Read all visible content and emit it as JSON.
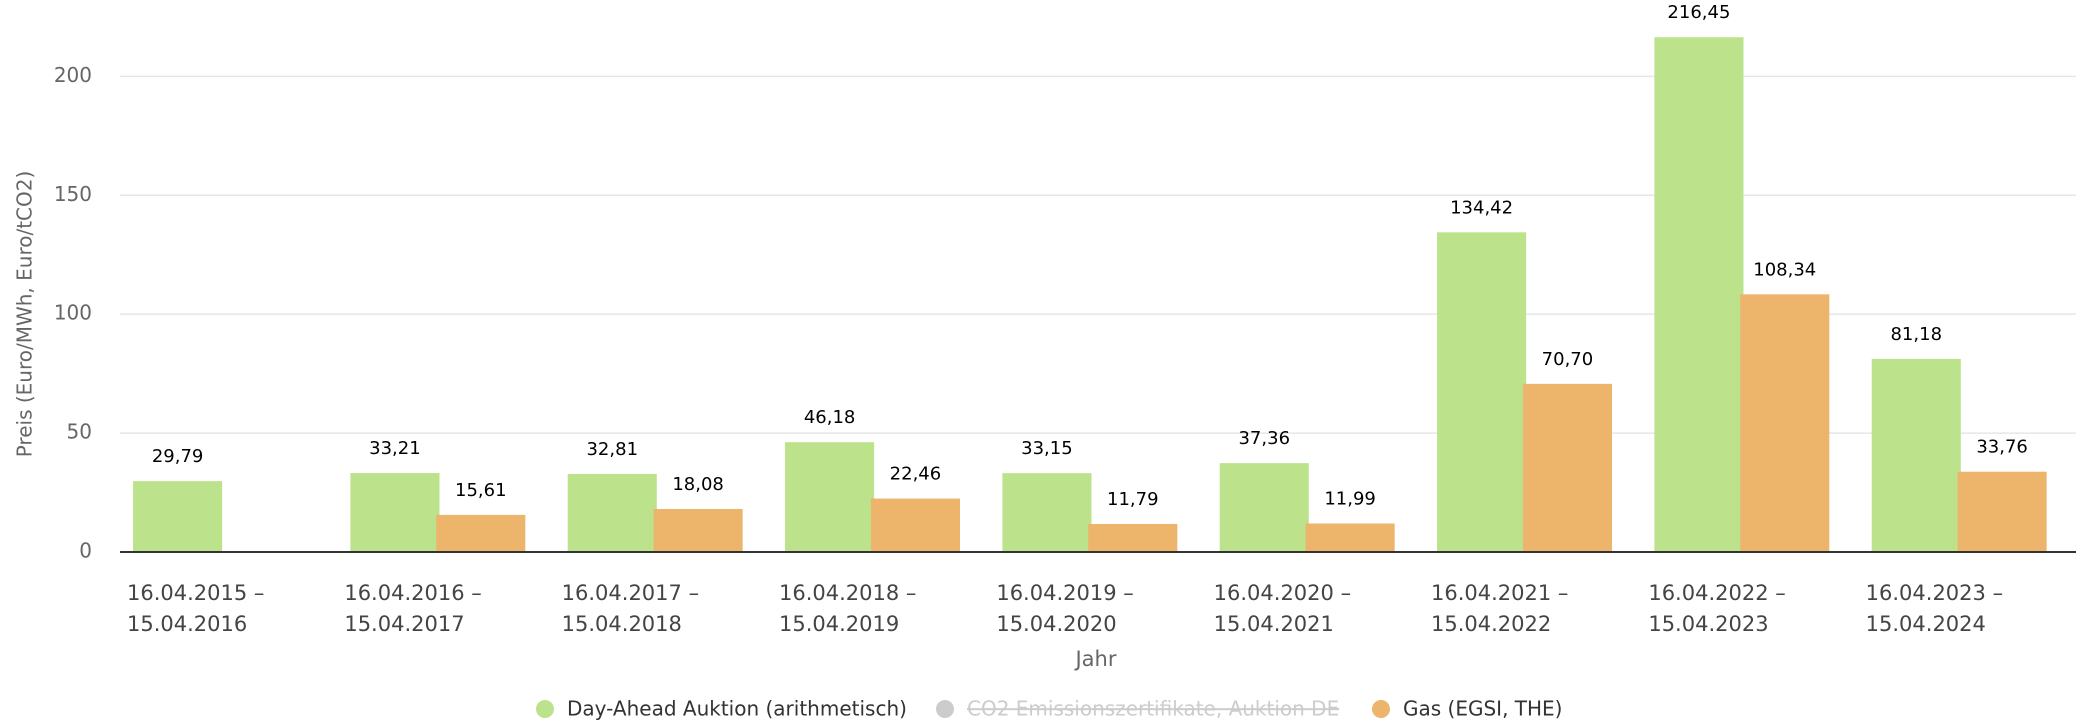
{
  "chart_data": {
    "type": "bar",
    "y_label": "Preis (Euro/MWh, Euro/tCO2)",
    "x_label": "Jahr",
    "categories": [
      [
        "16.04.2015 –",
        "15.04.2016"
      ],
      [
        "16.04.2016 –",
        "15.04.2017"
      ],
      [
        "16.04.2017 –",
        "15.04.2018"
      ],
      [
        "16.04.2018 –",
        "15.04.2019"
      ],
      [
        "16.04.2019 –",
        "15.04.2020"
      ],
      [
        "16.04.2020 –",
        "15.04.2021"
      ],
      [
        "16.04.2021 –",
        "15.04.2022"
      ],
      [
        "16.04.2022 –",
        "15.04.2023"
      ],
      [
        "16.04.2023 –",
        "15.04.2024"
      ]
    ],
    "series": [
      {
        "name": "Day-Ahead Auktion (arithmetisch)",
        "color": "#bde28c",
        "visible": true,
        "values": [
          29.79,
          33.21,
          32.81,
          46.18,
          33.15,
          37.36,
          134.42,
          216.45,
          81.18
        ],
        "value_labels": [
          "29,79",
          "33,21",
          "32,81",
          "46,18",
          "33,15",
          "37,36",
          "134,42",
          "216,45",
          "81,18"
        ]
      },
      {
        "name": "CO2 Emissionszertifikate, Auktion DE",
        "color": "#cccccc",
        "visible": false,
        "values": [
          null,
          null,
          null,
          null,
          null,
          null,
          null,
          null,
          null
        ]
      },
      {
        "name": "Gas (EGSI, THE)",
        "color": "#ecb56b",
        "visible": true,
        "values": [
          null,
          15.61,
          18.08,
          22.46,
          11.79,
          11.99,
          70.7,
          108.34,
          33.76
        ],
        "value_labels": [
          null,
          "15,61",
          "18,08",
          "22,46",
          "11,79",
          "11,99",
          "70,70",
          "108,34",
          "33,76"
        ]
      }
    ],
    "ylim": [
      0,
      230
    ],
    "yticks": [
      0,
      50,
      100,
      150,
      200
    ],
    "grid": true,
    "legend": "bottom"
  }
}
